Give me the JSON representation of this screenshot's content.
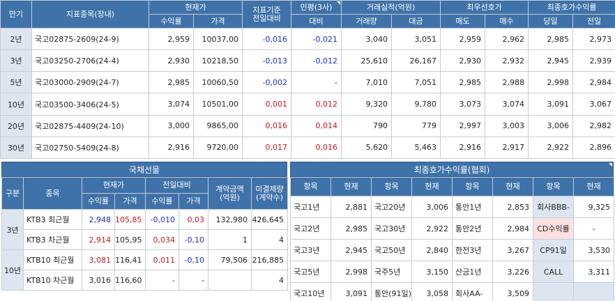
{
  "bond_table": {
    "headers": {
      "tenor": "만기",
      "issue": "지표종목(장내)",
      "current": "현재가",
      "yield": "수익률",
      "price": "가격",
      "vs_prev": "지표기준\n전일대비",
      "min_avg": "민평(3사)",
      "min_diff": "대비",
      "volume_group": "거래실적(억원)",
      "volume": "거래량",
      "amount": "대금",
      "best_quote": "최우선호가",
      "ask": "매도",
      "bid": "매수",
      "last_yield": "최종호가수익률",
      "today": "당일",
      "prev_day": "전일"
    },
    "rows": [
      {
        "tenor": "2년",
        "issue": "국고02875-2609(24-9)",
        "yield": "2,959",
        "price": "10037,00",
        "chg": "-0,016",
        "chg_color": "blue",
        "mp": "-0,021",
        "mp_color": "blue",
        "vol": "3,040",
        "amt": "3,051",
        "ask": "2,959",
        "bid": "2,962",
        "today": "2,985",
        "prev": "2,973"
      },
      {
        "tenor": "3년",
        "issue": "국고03250-2706(24-4)",
        "yield": "2,930",
        "price": "10218,50",
        "chg": "-0,013",
        "chg_color": "blue",
        "mp": "-0,012",
        "mp_color": "blue",
        "vol": "25,610",
        "amt": "26,167",
        "ask": "2,930",
        "bid": "2,932",
        "today": "2,945",
        "prev": "2,939"
      },
      {
        "tenor": "5년",
        "issue": "국고03000-2909(24-7)",
        "yield": "2,985",
        "price": "10060,50",
        "chg": "-0,002",
        "chg_color": "blue",
        "mp": "-",
        "mp_color": "",
        "vol": "7,010",
        "amt": "7,051",
        "ask": "2,985",
        "bid": "2,988",
        "today": "2,998",
        "prev": "2,984"
      },
      {
        "tenor": "10년",
        "issue": "국고03500-3406(24-5)",
        "yield": "3,074",
        "price": "10501,00",
        "chg": "0,001",
        "chg_color": "red",
        "mp": "0,012",
        "mp_color": "red",
        "vol": "9,320",
        "amt": "9,780",
        "ask": "3,073",
        "bid": "3,074",
        "today": "3,091",
        "prev": "3,067"
      },
      {
        "tenor": "20년",
        "issue": "국고02875-4409(24-10)",
        "yield": "3,000",
        "price": "9865,00",
        "chg": "0,016",
        "chg_color": "red",
        "mp": "0,014",
        "mp_color": "red",
        "vol": "790",
        "amt": "779",
        "ask": "2,997",
        "bid": "3,003",
        "today": "3,006",
        "prev": "2,982"
      },
      {
        "tenor": "30년",
        "issue": "국고02750-5409(24-8)",
        "yield": "2,916",
        "price": "9720,00",
        "chg": "0,017",
        "chg_color": "red",
        "mp": "0,016",
        "mp_color": "red",
        "vol": "5,620",
        "amt": "5,463",
        "ask": "2,916",
        "bid": "2,917",
        "today": "2,922",
        "prev": "2,896"
      }
    ]
  },
  "futures": {
    "title": "국채선물",
    "headers": {
      "group": "구분",
      "item": "종목",
      "current": "현재가",
      "yield": "수익률",
      "price": "가격",
      "vs_prev": "전일대비",
      "amount": "계약금액\n(억원)",
      "open_interest": "미결제량\n(계약수)"
    },
    "rows": [
      {
        "group": "3년",
        "item": "KTB3 최근월",
        "yield": "2,948",
        "yield_color": "blue",
        "price": "105,85",
        "price_color": "red",
        "dy": "-0,010",
        "dy_color": "blue",
        "dp": "0,03",
        "dp_color": "red",
        "amount": "132,980",
        "oi": "426,645"
      },
      {
        "group": "3년",
        "item": "KTB3 차근월",
        "yield": "2,914",
        "yield_color": "red",
        "price": "105,95",
        "price_color": "",
        "dy": "0,034",
        "dy_color": "red",
        "dp": "-0,10",
        "dp_color": "blue",
        "amount": "1",
        "oi": "4"
      },
      {
        "group": "10년",
        "item": "KTB10 최근월",
        "yield": "3,081",
        "yield_color": "red",
        "price": "116,41",
        "price_color": "",
        "dy": "0,011",
        "dy_color": "red",
        "dp": "-0,10",
        "dp_color": "blue",
        "amount": "79,506",
        "oi": "216,885"
      },
      {
        "group": "10년",
        "item": "KTB10 차근월",
        "yield": "3,016",
        "yield_color": "",
        "price": "116,60",
        "price_color": "",
        "dy": "-",
        "dy_color": "",
        "dp": "-",
        "dp_color": "",
        "amount": "",
        "oi": "4"
      }
    ]
  },
  "rates": {
    "title": "최종호가수익률(협회)",
    "headers": {
      "item": "항목",
      "current": "현재"
    },
    "rows": [
      [
        "국고1년",
        "2,881",
        "국고20년",
        "3,006",
        "통안1년",
        "2,853",
        "회사BBB-",
        "9,325"
      ],
      [
        "국고2년",
        "2,985",
        "국고30년",
        "2,922",
        "통안2년",
        "2,984",
        "CD수익률",
        "-"
      ],
      [
        "국고3년",
        "2,945",
        "국고50년",
        "2,840",
        "한전3년",
        "3,267",
        "CP91일",
        "3,530"
      ],
      [
        "국고5년",
        "2,998",
        "국주5년",
        "3,150",
        "산금1년",
        "3,226",
        "CALL",
        "3,311"
      ],
      [
        "국고10년",
        "3,091",
        "통안(91일)",
        "3,058",
        "회사AA-",
        "3,509",
        "",
        ""
      ]
    ]
  },
  "colors": {
    "header": "#3f72a8",
    "highlight": "#dde6f0",
    "pink": "#fde0e0",
    "up": "#c8141e",
    "down": "#1a2ad0"
  }
}
